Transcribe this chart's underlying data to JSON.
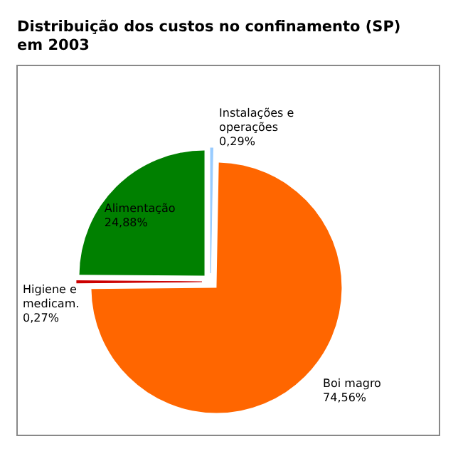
{
  "chart_data": {
    "type": "pie",
    "title": "Distribuição dos custos no confinamento (SP) em 2003",
    "categories": [
      "Instalações e operações",
      "Boi magro",
      "Higiene e medicam.",
      "Alimentação"
    ],
    "values": [
      0.29,
      74.56,
      0.27,
      24.88
    ],
    "colors": [
      "#99ccff",
      "#ff6600",
      "#cc0000",
      "#008000"
    ],
    "value_labels": [
      "0,29%",
      "74,56%",
      "0,27%",
      "24,88%"
    ],
    "legend": false
  }
}
